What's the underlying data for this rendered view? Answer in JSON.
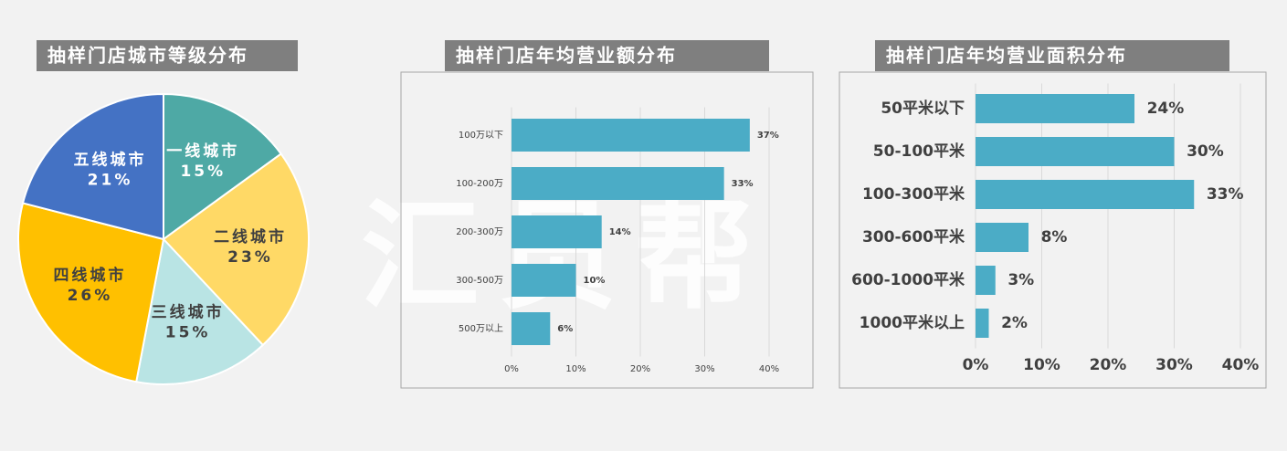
{
  "watermark": "汇员帮",
  "chart_data": [
    {
      "type": "pie",
      "title": "抽样门店城市等级分布",
      "categories": [
        "一线城市",
        "二线城市",
        "三线城市",
        "四线城市",
        "五线城市"
      ],
      "values": [
        15,
        23,
        15,
        26,
        21
      ],
      "value_labels": [
        "15%",
        "23%",
        "15%",
        "26%",
        "21%"
      ],
      "colors": [
        "#4ea9a5",
        "#ffd966",
        "#b9e4e4",
        "#ffc000",
        "#4472c4"
      ]
    },
    {
      "type": "hbar",
      "title": "抽样门店年均营业额分布",
      "categories": [
        "100万以下",
        "100-200万",
        "200-300万",
        "300-500万",
        "500万以上"
      ],
      "values": [
        37,
        33,
        14,
        10,
        6
      ],
      "value_labels": [
        "37%",
        "33%",
        "14%",
        "10%",
        "6%"
      ],
      "color": "#4bacc6",
      "xlim": [
        0,
        40
      ],
      "xticks": [
        {
          "value": 0,
          "label": "0%"
        },
        {
          "value": 10,
          "label": "10%"
        },
        {
          "value": 20,
          "label": "20%"
        },
        {
          "value": 30,
          "label": "30%"
        },
        {
          "value": 40,
          "label": "40%"
        }
      ],
      "grid": true
    },
    {
      "type": "hbar",
      "title": "抽样门店年均营业面积分布",
      "categories": [
        "50平米以下",
        "50-100平米",
        "100-300平米",
        "300-600平米",
        "600-1000平米",
        "1000平米以上"
      ],
      "values": [
        24,
        30,
        33,
        8,
        3,
        2
      ],
      "value_labels": [
        "24%",
        "30%",
        "33%",
        "8%",
        "3%",
        "2%"
      ],
      "color": "#4bacc6",
      "xlim": [
        0,
        40
      ],
      "xticks": [
        {
          "value": 0,
          "label": "0%"
        },
        {
          "value": 10,
          "label": "10%"
        },
        {
          "value": 20,
          "label": "20%"
        },
        {
          "value": 30,
          "label": "30%"
        },
        {
          "value": 40,
          "label": "40%"
        }
      ],
      "grid": true
    }
  ]
}
